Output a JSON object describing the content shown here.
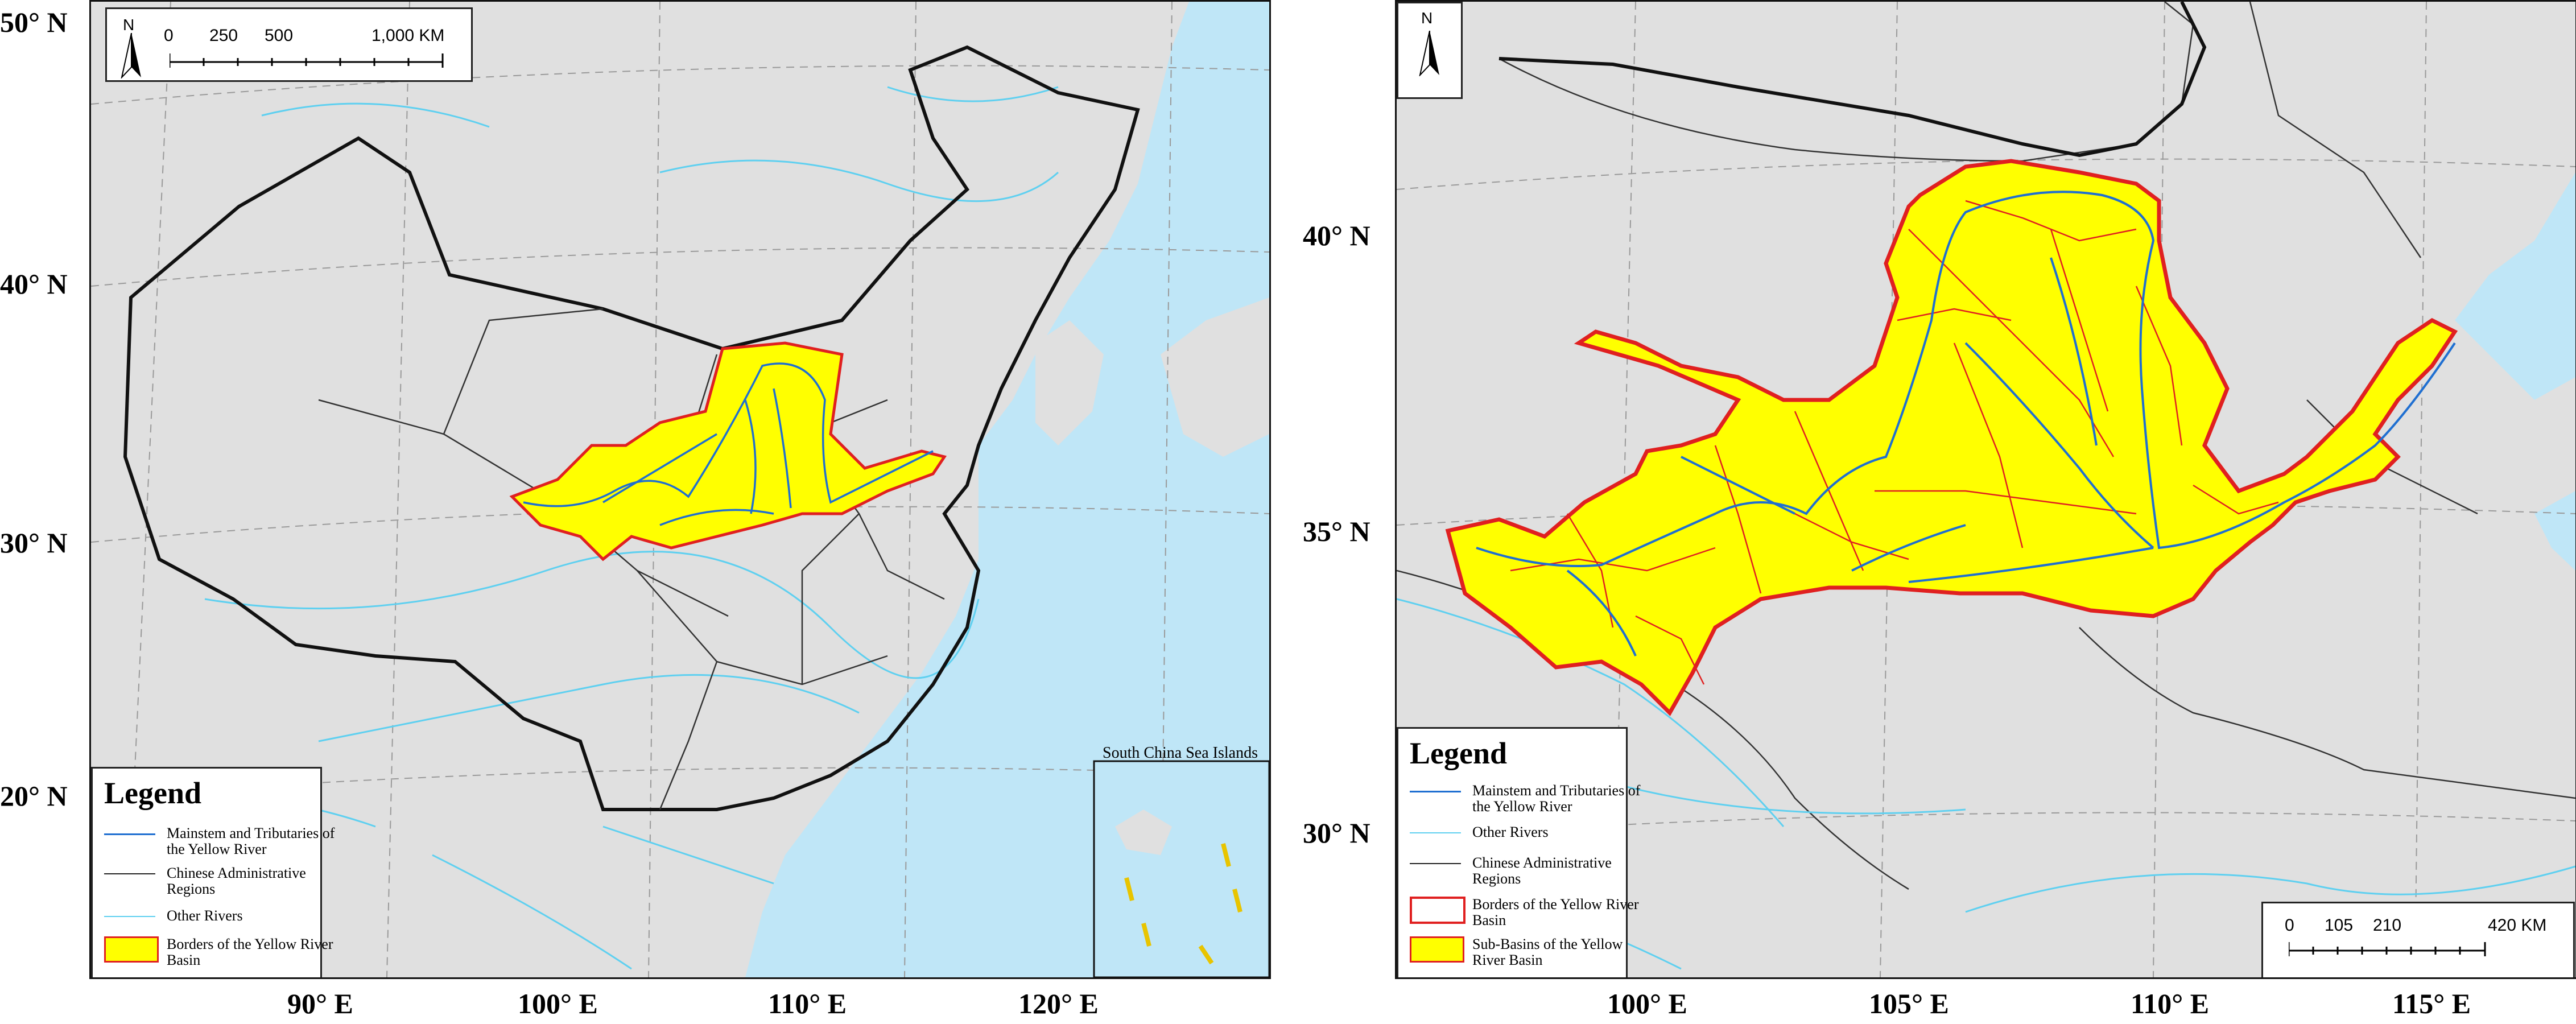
{
  "left_map": {
    "lat_labels": [
      "50° N",
      "40° N",
      "30° N",
      "20° N"
    ],
    "lon_labels": [
      "90° E",
      "100° E",
      "110° E",
      "120° E"
    ],
    "scale": {
      "north": "N",
      "ticks": [
        "0",
        "250",
        "500",
        "1,000 KM"
      ]
    },
    "inset_title": "South China Sea Islands",
    "legend": {
      "title": "Legend",
      "items": [
        {
          "type": "line",
          "color": "#1f6fd1",
          "label": "Mainstem and Tributaries of the Yellow River"
        },
        {
          "type": "line",
          "color": "#222222",
          "label": "Chinese Administrative Regions"
        },
        {
          "type": "line",
          "color": "#5fd0f0",
          "label": "Other Rivers"
        },
        {
          "type": "box",
          "fill": "#ffff00",
          "stroke": "#e02020",
          "label": "Borders of the Yellow River Basin"
        }
      ]
    }
  },
  "right_map": {
    "lat_labels": [
      "40° N",
      "35° N",
      "30° N"
    ],
    "lon_labels": [
      "100° E",
      "105° E",
      "110° E",
      "115° E"
    ],
    "scale": {
      "north": "N",
      "ticks": [
        "0",
        "105",
        "210",
        "420 KM"
      ]
    },
    "legend": {
      "title": "Legend",
      "items": [
        {
          "type": "line",
          "color": "#1f6fd1",
          "label": "Mainstem and Tributaries of the Yellow River"
        },
        {
          "type": "line",
          "color": "#5fd0f0",
          "label": "Other Rivers"
        },
        {
          "type": "line",
          "color": "#222222",
          "label": "Chinese Administrative Regions"
        },
        {
          "type": "box",
          "fill": "#ffffff",
          "stroke": "#e02020",
          "label": "Borders of the Yellow River Basin"
        },
        {
          "type": "box",
          "fill": "#ffff00",
          "stroke": "#e02020",
          "label": "Sub-Basins of the Yellow River Basin"
        }
      ]
    }
  },
  "colors": {
    "land": "#e0e0e0",
    "sea": "#bfe6f7",
    "basin": "#ffff00",
    "basin_border": "#e02020",
    "mainstem": "#1f6fd1",
    "other_river": "#5fd0f0"
  }
}
